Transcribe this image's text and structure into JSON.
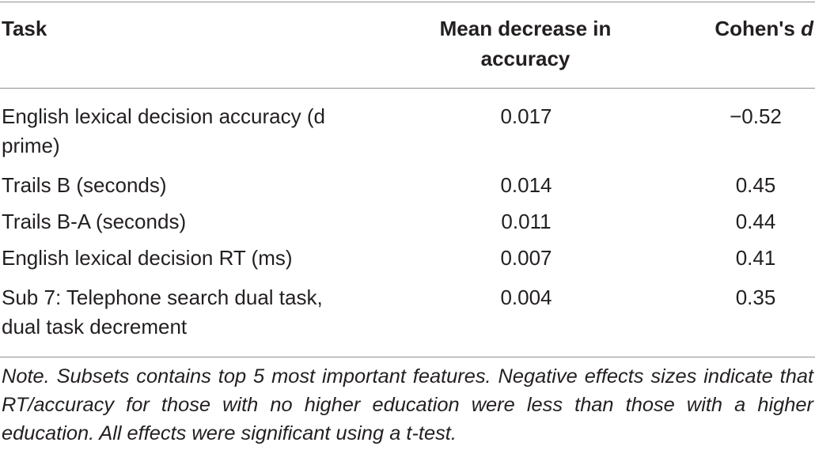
{
  "header": {
    "task": "Task",
    "mean_decrease": "Mean decrease in accuracy",
    "cohens_prefix": "Cohen's ",
    "cohens_d": "d"
  },
  "rows": [
    {
      "task": "English lexical decision accuracy (d prime)",
      "mean_decrease": "0.017",
      "cohens_d": "−0.52"
    },
    {
      "task": "Trails B (seconds)",
      "mean_decrease": "0.014",
      "cohens_d": "0.45"
    },
    {
      "task": "Trails B-A (seconds)",
      "mean_decrease": "0.011",
      "cohens_d": "0.44"
    },
    {
      "task": "English lexical decision RT (ms)",
      "mean_decrease": "0.007",
      "cohens_d": "0.41"
    },
    {
      "task": "Sub 7: Telephone search dual task, dual task decrement",
      "mean_decrease": "0.004",
      "cohens_d": "0.35"
    }
  ],
  "note": "Note. Subsets contains top 5 most important features. Negative effects sizes indicate that RT/accuracy for those with no higher education were less than those with a higher education. All effects were significant using a t-test."
}
